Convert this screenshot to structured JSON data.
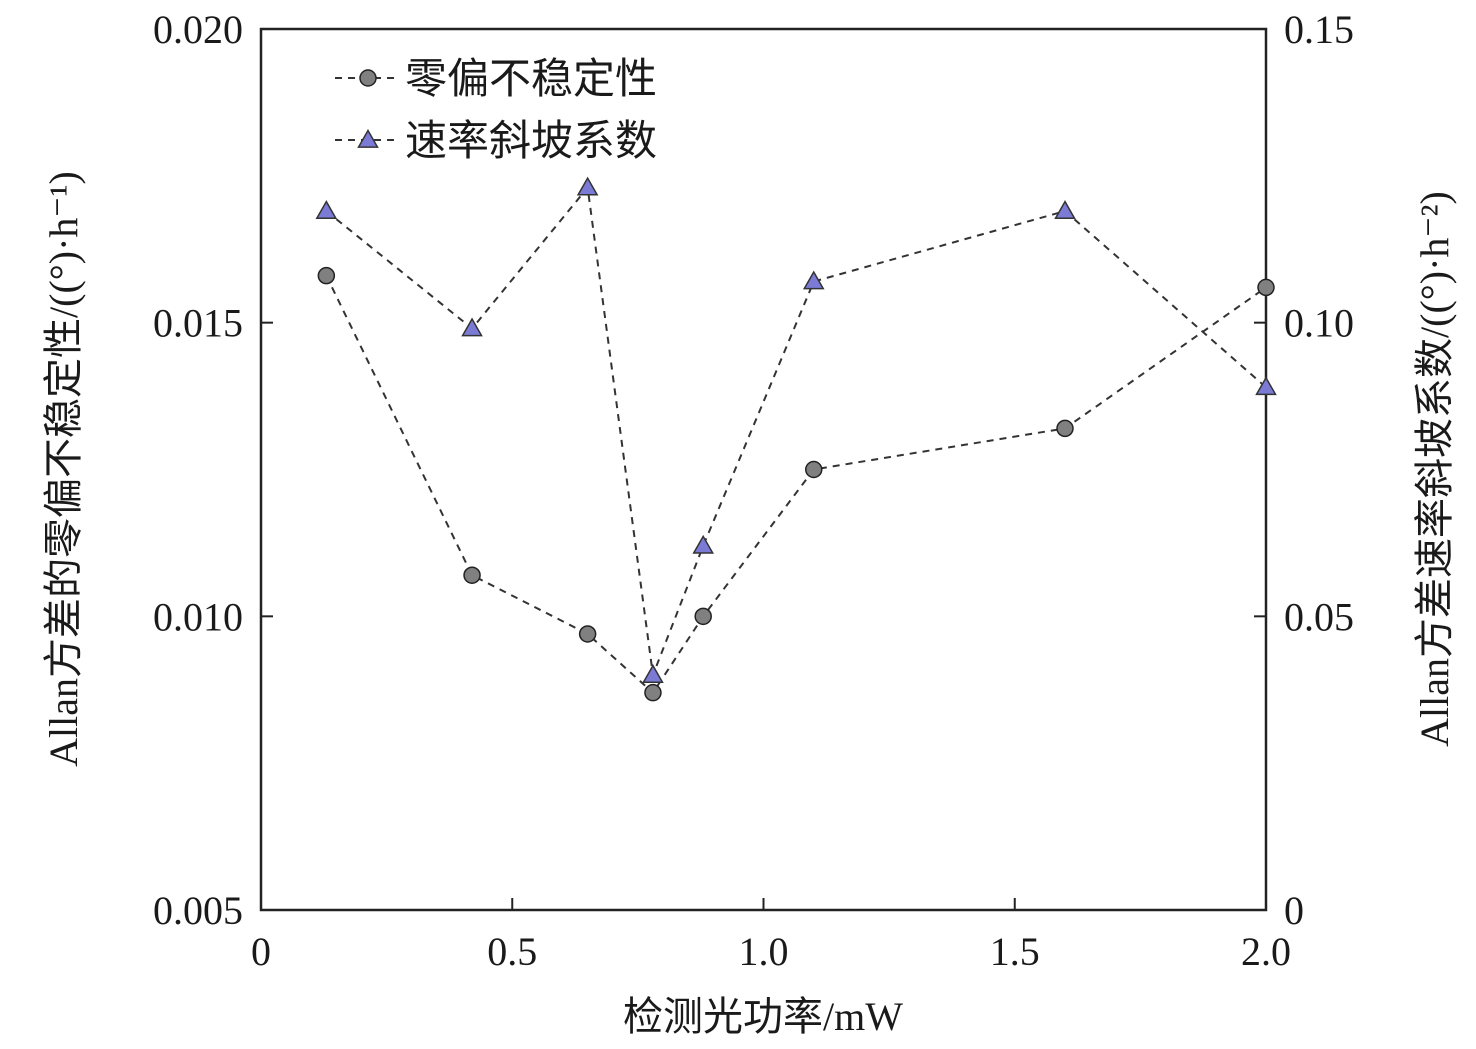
{
  "chart_data": {
    "type": "line",
    "xlabel": "检测光功率/mW",
    "ylabel_left": "Allan方差的零偏不稳定性/((°)·h⁻¹)",
    "ylabel_right": "Allan方差速率斜坡系数/((°)·h⁻²)",
    "xlim": [
      0,
      2.0
    ],
    "ylim_left": [
      0.005,
      0.02
    ],
    "ylim_right": [
      0,
      0.15
    ],
    "x_ticks": [
      "0",
      "0.5",
      "1.0",
      "1.5",
      "2.0"
    ],
    "y_left_ticks": [
      "0.005",
      "0.010",
      "0.015",
      "0.020"
    ],
    "y_right_ticks": [
      "0",
      "0.05",
      "0.10",
      "0.15"
    ],
    "grid": false,
    "legend_position": "top-left",
    "series": [
      {
        "name": "零偏不稳定性",
        "axis": "left",
        "marker": "circle",
        "color": "#808080",
        "x": [
          0.13,
          0.42,
          0.65,
          0.78,
          0.88,
          1.1,
          1.6,
          2.0
        ],
        "y": [
          0.0158,
          0.0107,
          0.0097,
          0.0087,
          0.01,
          0.0125,
          0.0132,
          0.0156
        ]
      },
      {
        "name": "速率斜坡系数",
        "axis": "right",
        "marker": "triangle",
        "color": "#7b7bd6",
        "x": [
          0.13,
          0.42,
          0.65,
          0.78,
          0.88,
          1.1,
          1.6,
          2.0
        ],
        "y": [
          0.119,
          0.099,
          0.123,
          0.04,
          0.062,
          0.107,
          0.119,
          0.089
        ]
      }
    ]
  }
}
